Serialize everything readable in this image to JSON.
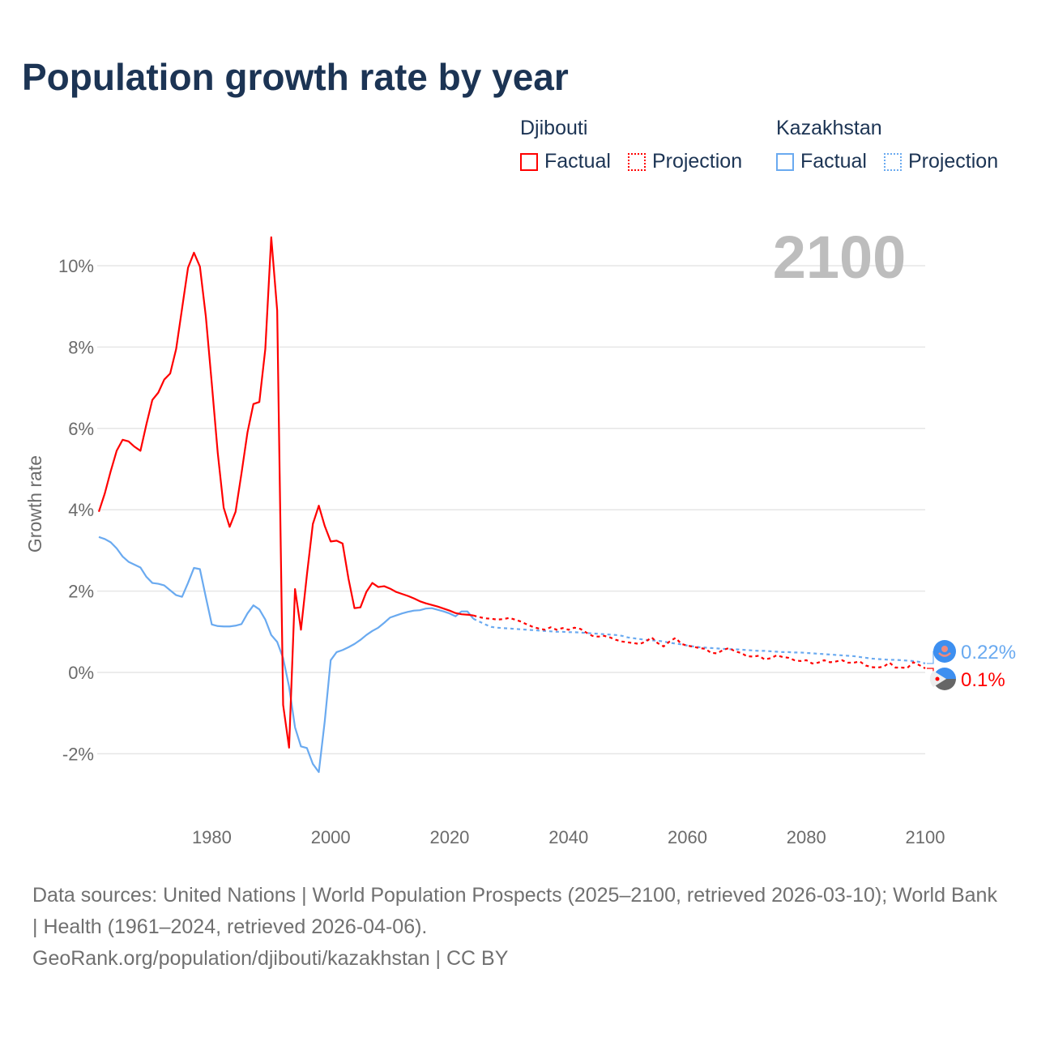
{
  "title": "Population growth rate by year",
  "legend": {
    "groups": [
      {
        "name": "Djibouti",
        "color": "#ff0000",
        "factual_label": "Factual",
        "projection_label": "Projection"
      },
      {
        "name": "Kazakhstan",
        "color": "#6aaaf0",
        "factual_label": "Factual",
        "projection_label": "Projection"
      }
    ]
  },
  "chart_data": {
    "type": "line",
    "title": "Population growth rate by year",
    "xlabel": "",
    "ylabel": "Growth rate",
    "xlim": [
      1961,
      2100
    ],
    "ylim": [
      -3,
      11
    ],
    "x_ticks": [
      1980,
      2000,
      2020,
      2040,
      2060,
      2080,
      2100
    ],
    "y_ticks": [
      -2,
      0,
      2,
      4,
      6,
      8,
      10
    ],
    "y_tick_labels": [
      "-2%",
      "0%",
      "2%",
      "4%",
      "6%",
      "8%",
      "10%"
    ],
    "current_year_label": "2100",
    "grid": true,
    "series": [
      {
        "name": "Djibouti",
        "color": "#ff0000",
        "end_label": "0.1%",
        "factual": {
          "start_year": 1961,
          "values": [
            3.95,
            4.4,
            4.95,
            5.45,
            5.72,
            5.68,
            5.55,
            5.45,
            6.1,
            6.7,
            6.88,
            7.2,
            7.35,
            7.95,
            8.95,
            9.95,
            10.32,
            9.98,
            8.75,
            7.1,
            5.4,
            4.05,
            3.58,
            3.95,
            4.9,
            5.9,
            6.6,
            6.65,
            7.95,
            10.7,
            8.9,
            -0.8,
            -1.85,
            2.05,
            1.05,
            2.4,
            3.65,
            4.1,
            3.6,
            3.22,
            3.24,
            3.17,
            2.3,
            1.58,
            1.6,
            1.98,
            2.2,
            2.1,
            2.12,
            2.06,
            1.98,
            1.93,
            1.88,
            1.82,
            1.75,
            1.7,
            1.66,
            1.62,
            1.57,
            1.52,
            1.46,
            1.43,
            1.42,
            1.4
          ]
        },
        "projection": {
          "start_year": 2025,
          "values": [
            1.36,
            1.33,
            1.32,
            1.3,
            1.31,
            1.34,
            1.3,
            1.25,
            1.18,
            1.12,
            1.08,
            1.05,
            1.11,
            1.05,
            1.09,
            1.05,
            1.1,
            1.07,
            0.98,
            0.9,
            0.88,
            0.9,
            0.86,
            0.8,
            0.76,
            0.74,
            0.72,
            0.7,
            0.76,
            0.86,
            0.72,
            0.64,
            0.76,
            0.85,
            0.7,
            0.66,
            0.63,
            0.6,
            0.58,
            0.48,
            0.47,
            0.55,
            0.6,
            0.52,
            0.48,
            0.4,
            0.39,
            0.41,
            0.32,
            0.35,
            0.42,
            0.38,
            0.36,
            0.3,
            0.28,
            0.3,
            0.22,
            0.24,
            0.3,
            0.25,
            0.27,
            0.3,
            0.24,
            0.24,
            0.27,
            0.17,
            0.13,
            0.12,
            0.14,
            0.24,
            0.12,
            0.12,
            0.11,
            0.25,
            0.18,
            0.1
          ]
        }
      },
      {
        "name": "Kazakhstan",
        "color": "#6aaaf0",
        "end_label": "0.22%",
        "factual": {
          "start_year": 1961,
          "values": [
            3.33,
            3.28,
            3.2,
            3.05,
            2.85,
            2.72,
            2.65,
            2.58,
            2.35,
            2.2,
            2.18,
            2.14,
            2.02,
            1.9,
            1.86,
            2.2,
            2.57,
            2.54,
            1.85,
            1.18,
            1.14,
            1.13,
            1.13,
            1.15,
            1.19,
            1.45,
            1.65,
            1.55,
            1.3,
            0.92,
            0.75,
            0.35,
            -0.35,
            -1.35,
            -1.82,
            -1.86,
            -2.25,
            -2.45,
            -1.2,
            0.3,
            0.5,
            0.55,
            0.62,
            0.7,
            0.8,
            0.92,
            1.02,
            1.1,
            1.22,
            1.35,
            1.4,
            1.45,
            1.49,
            1.52,
            1.53,
            1.57,
            1.58,
            1.54,
            1.5,
            1.45,
            1.38,
            1.5,
            1.5,
            1.32
          ]
        },
        "projection": {
          "start_year": 2025,
          "values": [
            1.25,
            1.18,
            1.12,
            1.1,
            1.09,
            1.08,
            1.07,
            1.06,
            1.05,
            1.04,
            1.03,
            1.02,
            1.01,
            1.0,
            1.0,
            0.99,
            0.99,
            0.98,
            0.97,
            0.96,
            0.95,
            0.94,
            0.93,
            0.92,
            0.9,
            0.86,
            0.84,
            0.82,
            0.8,
            0.79,
            0.78,
            0.76,
            0.73,
            0.71,
            0.69,
            0.66,
            0.64,
            0.62,
            0.61,
            0.6,
            0.59,
            0.58,
            0.57,
            0.57,
            0.56,
            0.55,
            0.54,
            0.53,
            0.53,
            0.52,
            0.51,
            0.5,
            0.5,
            0.49,
            0.49,
            0.48,
            0.47,
            0.46,
            0.45,
            0.44,
            0.43,
            0.42,
            0.41,
            0.4,
            0.38,
            0.36,
            0.34,
            0.33,
            0.32,
            0.31,
            0.31,
            0.3,
            0.29,
            0.28,
            0.26,
            0.22
          ]
        }
      }
    ]
  },
  "footer": {
    "sources": "Data sources: United Nations | World Population Prospects (2025–2100, retrieved 2026-03-10); World Bank | Health (1961–2024, retrieved 2026-04-06).",
    "attribution": "GeoRank.org/population/djibouti/kazakhstan | CC BY"
  }
}
